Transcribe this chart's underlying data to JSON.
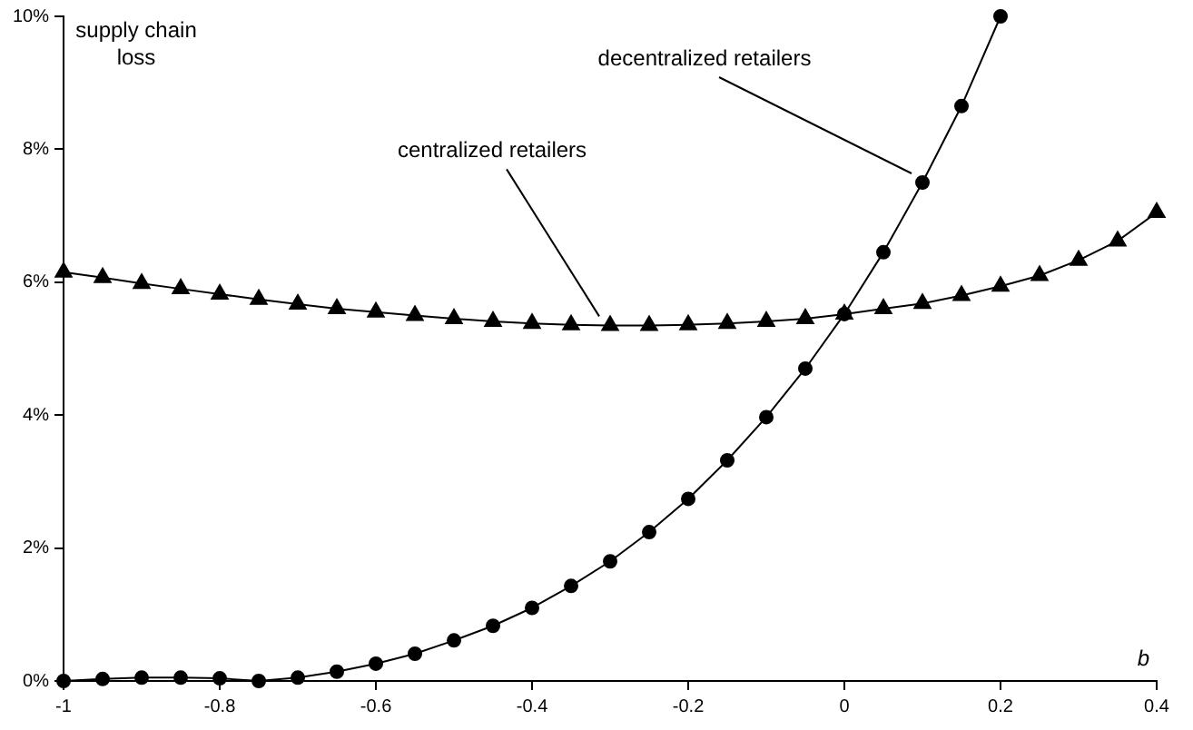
{
  "chart_data": {
    "type": "line",
    "xlabel": "b",
    "ylabel": "supply chain loss",
    "xlim": [
      -1,
      0.4
    ],
    "xticks": [
      -1,
      -0.8,
      -0.6,
      -0.4,
      -0.2,
      0,
      0.2,
      0.4
    ],
    "ylim": [
      0,
      10
    ],
    "yticks": [
      {
        "value": 0,
        "label": "0%"
      },
      {
        "value": 2,
        "label": "2%"
      },
      {
        "value": 4,
        "label": "4%"
      },
      {
        "value": 6,
        "label": "6%"
      },
      {
        "value": 8,
        "label": "8%"
      },
      {
        "value": 10,
        "label": "10%"
      }
    ],
    "grid": false,
    "legend": false,
    "line_style": "solid",
    "series": [
      {
        "color": "#000000",
        "marker": "circle",
        "x": [
          -1,
          -0.95,
          -0.9,
          -0.85,
          -0.8,
          -0.75,
          -0.7,
          -0.65,
          -0.6,
          -0.55,
          -0.5,
          -0.45,
          -0.4,
          -0.35,
          -0.3,
          -0.25,
          -0.2,
          -0.15,
          -0.1,
          -0.05,
          0,
          0.05,
          0.1,
          0.15,
          0.2
        ],
        "values": [
          0,
          0.03,
          0.05,
          0.05,
          0.04,
          0,
          0.05,
          0.14,
          0.26,
          0.41,
          0.61,
          0.83,
          1.1,
          1.43,
          1.8,
          2.24,
          2.74,
          3.32,
          3.97,
          4.7,
          5.52,
          6.45,
          7.5,
          8.65,
          10
        ]
      },
      {
        "color": "#000000",
        "marker": "triangle",
        "x": [
          -1,
          -0.95,
          -0.9,
          -0.85,
          -0.8,
          -0.75,
          -0.7,
          -0.65,
          -0.6,
          -0.55,
          -0.5,
          -0.45,
          -0.4,
          -0.35,
          -0.3,
          -0.25,
          -0.2,
          -0.15,
          -0.1,
          -0.05,
          0,
          0.05,
          0.1,
          0.15,
          0.2,
          0.25,
          0.3,
          0.35,
          0.4
        ],
        "values": [
          6.15,
          6.07,
          5.98,
          5.9,
          5.82,
          5.74,
          5.67,
          5.6,
          5.55,
          5.5,
          5.45,
          5.41,
          5.38,
          5.36,
          5.35,
          5.35,
          5.36,
          5.38,
          5.41,
          5.45,
          5.52,
          5.6,
          5.68,
          5.8,
          5.94,
          6.1,
          6.33,
          6.62,
          7.05
        ]
      }
    ],
    "annotations": [
      {
        "text": "decentralized retailers",
        "x": 0.1,
        "y": 7.5
      },
      {
        "text": "centralized retailers",
        "x": -0.3,
        "y": 5.35
      }
    ]
  }
}
